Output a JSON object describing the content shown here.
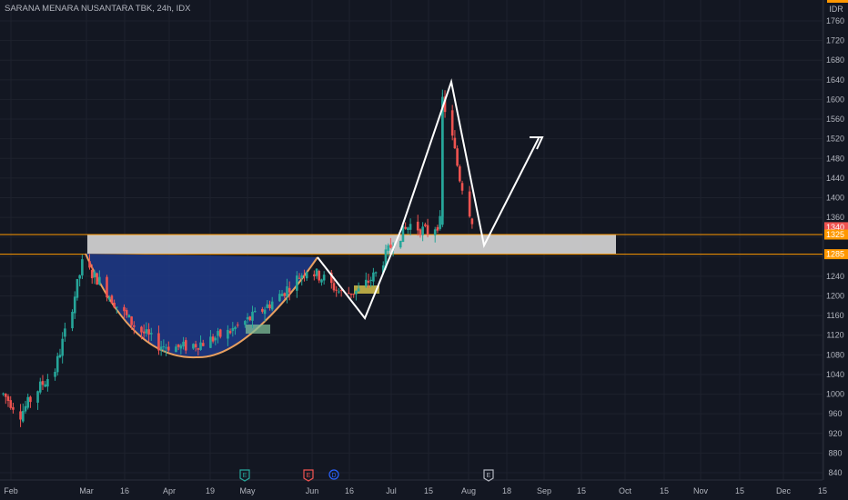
{
  "header": {
    "title": "SARANA MENARA NUSANTARA TBK, 24h, IDX"
  },
  "colors": {
    "background": "#131722",
    "up": "#26a69a",
    "down": "#ef5350",
    "cup_fill": "#1e3a8a",
    "cup_line": "#e8a060",
    "zone": "#d4d4d4",
    "zone_line": "#ff9800",
    "price_badge": "#ef5350",
    "level_badge": "#ff9800",
    "annotation": "#ffffff"
  },
  "chart_data": {
    "type": "candlestick",
    "currency": "IDR",
    "y_ticks": [
      1760,
      1720,
      1680,
      1640,
      1600,
      1560,
      1520,
      1480,
      1440,
      1400,
      1360,
      1320,
      1280,
      1240,
      1200,
      1160,
      1120,
      1080,
      1040,
      1000,
      960,
      920,
      880,
      840
    ],
    "x_ticks": [
      "Feb",
      "Mar",
      "16",
      "Apr",
      "19",
      "May",
      "Jun",
      "16",
      "Jul",
      "15",
      "Aug",
      "18",
      "Sep",
      "15",
      "Oct",
      "15",
      "Nov",
      "15",
      "Dec",
      "15"
    ],
    "last_price": 1340,
    "levels": [
      1325,
      1285
    ],
    "events": [
      {
        "label": "E",
        "date": "May",
        "color": "#26a69a"
      },
      {
        "label": "E",
        "date": "Jun",
        "color": "#ef5350"
      },
      {
        "label": "D",
        "date": "Jun",
        "color": "#2962ff"
      },
      {
        "label": "E",
        "date": "Aug",
        "color": "#b2b5be"
      }
    ],
    "series_path": [
      [
        "2024-01-29",
        1000
      ],
      [
        "2024-02-05",
        960
      ],
      [
        "2024-02-12",
        1010
      ],
      [
        "2024-02-19",
        1050
      ],
      [
        "2024-02-26",
        1180
      ],
      [
        "2024-03-01",
        1265
      ],
      [
        "2024-03-08",
        1230
      ],
      [
        "2024-03-15",
        1180
      ],
      [
        "2024-03-22",
        1140
      ],
      [
        "2024-04-01",
        1100
      ],
      [
        "2024-04-10",
        1095
      ],
      [
        "2024-04-19",
        1105
      ],
      [
        "2024-04-29",
        1125
      ],
      [
        "2024-05-10",
        1160
      ],
      [
        "2024-05-20",
        1200
      ],
      [
        "2024-05-31",
        1255
      ],
      [
        "2024-06-07",
        1235
      ],
      [
        "2024-06-14",
        1205
      ],
      [
        "2024-06-21",
        1210
      ],
      [
        "2024-06-28",
        1245
      ],
      [
        "2024-07-05",
        1310
      ],
      [
        "2024-07-12",
        1345
      ],
      [
        "2024-07-19",
        1330
      ],
      [
        "2024-07-24",
        1350
      ],
      [
        "2024-07-25",
        1600
      ],
      [
        "2024-07-29",
        1520
      ],
      [
        "2024-08-01",
        1440
      ],
      [
        "2024-08-06",
        1355
      ]
    ]
  }
}
